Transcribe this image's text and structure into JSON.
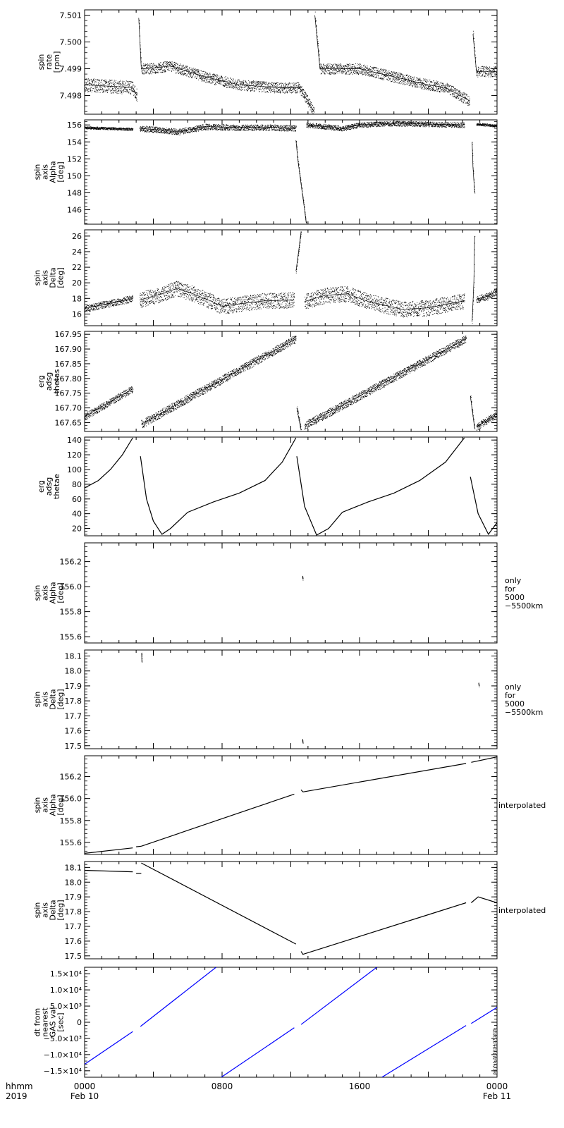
{
  "chart_data": [
    {
      "type": "scatter",
      "ylabel": [
        "spin",
        "rate",
        "[rpm]"
      ],
      "ylim": [
        7.4973,
        7.5012
      ],
      "yticks": [
        "7.498",
        "7.499",
        "7.500",
        "7.501"
      ],
      "yticks_v": [
        7.498,
        7.499,
        7.5,
        7.501
      ],
      "color": "#000000",
      "segments": [
        {
          "x": [
            0.0,
            2.8,
            3.05
          ],
          "y": [
            7.4984,
            7.4983,
            7.498
          ],
          "spread": 0.00025
        },
        {
          "x": [
            3.15,
            3.3,
            3.6,
            5.0,
            7.0,
            9.0,
            11.2,
            12.5,
            13.35
          ],
          "y": [
            7.5009,
            7.499,
            7.499,
            7.4991,
            7.4987,
            7.4984,
            7.4983,
            7.4983,
            7.4974
          ],
          "spread": 0.0002
        },
        {
          "x": [
            13.4,
            13.7,
            14.2,
            16.0,
            18.0,
            20.0,
            21.0,
            22.4
          ],
          "y": [
            7.501,
            7.499,
            7.499,
            7.499,
            7.4987,
            7.4984,
            7.4983,
            7.4978
          ],
          "spread": 0.0002
        },
        {
          "x": [
            22.6,
            22.8,
            23.3,
            24.0
          ],
          "y": [
            7.5003,
            7.4989,
            7.4989,
            7.4989
          ],
          "spread": 0.0002
        }
      ]
    },
    {
      "type": "scatter",
      "ylabel": [
        "spin",
        "axis",
        "Alpha",
        "[deg]"
      ],
      "ylim": [
        144.3,
        156.6
      ],
      "yticks": [
        "146",
        "148",
        "150",
        "152",
        "154",
        "156"
      ],
      "yticks_v": [
        146,
        148,
        150,
        152,
        154,
        156
      ],
      "color": "#000000",
      "segments": [
        {
          "x": [
            0.0,
            1.5,
            2.8
          ],
          "y": [
            155.7,
            155.6,
            155.5
          ],
          "spread": 0.15
        },
        {
          "x": [
            3.2,
            5.0,
            5.5,
            7.0,
            9.0,
            11.0,
            12.3
          ],
          "y": [
            155.6,
            155.3,
            155.2,
            155.8,
            155.7,
            155.7,
            155.6
          ],
          "spread": 0.35
        },
        {
          "x": [
            12.3,
            12.4,
            12.6,
            12.8,
            12.9
          ],
          "y": [
            154.2,
            152.0,
            149.0,
            146.0,
            144.4
          ],
          "spread": 0.2
        },
        {
          "x": [
            12.9,
            13.5,
            15.0,
            16.0,
            18.0,
            20.0,
            22.1
          ],
          "y": [
            156.0,
            155.9,
            155.6,
            156.0,
            156.2,
            156.1,
            156.0
          ],
          "spread": 0.3
        },
        {
          "x": [
            22.55,
            22.6,
            22.7
          ],
          "y": [
            154.0,
            151.0,
            148.0
          ],
          "spread": 0.2
        },
        {
          "x": [
            22.8,
            23.5,
            24.0
          ],
          "y": [
            156.1,
            156.0,
            155.9
          ],
          "spread": 0.15
        }
      ]
    },
    {
      "type": "scatter",
      "ylabel": [
        "spin",
        "axis",
        "Delta",
        "[deg]"
      ],
      "ylim": [
        14.5,
        26.8
      ],
      "yticks": [
        "16",
        "18",
        "20",
        "22",
        "24",
        "26"
      ],
      "yticks_v": [
        16,
        18,
        20,
        22,
        24,
        26
      ],
      "color": "#000000",
      "segments": [
        {
          "x": [
            0.0,
            1.5,
            2.8
          ],
          "y": [
            16.7,
            17.4,
            18.0
          ],
          "spread": 0.45
        },
        {
          "x": [
            3.2,
            4.5,
            5.4,
            6.3,
            7.3,
            8.0,
            9.0,
            10.5,
            12.2
          ],
          "y": [
            17.8,
            18.6,
            19.3,
            18.6,
            17.7,
            17.0,
            17.3,
            17.7,
            17.8
          ],
          "spread": 1.0
        },
        {
          "x": [
            12.3,
            12.45,
            12.6
          ],
          "y": [
            21.5,
            24.0,
            26.6
          ],
          "spread": 0.2
        },
        {
          "x": [
            12.8,
            14.0,
            15.3,
            16.5,
            17.5,
            18.5,
            20.0,
            22.1
          ],
          "y": [
            17.6,
            18.4,
            18.6,
            17.6,
            17.1,
            16.6,
            16.8,
            17.7
          ],
          "spread": 1.0
        },
        {
          "x": [
            22.55,
            22.65,
            22.7
          ],
          "y": [
            15.0,
            20.0,
            26.0
          ],
          "spread": 0.2
        },
        {
          "x": [
            22.8,
            23.5,
            24.0
          ],
          "y": [
            17.9,
            18.3,
            19.0
          ],
          "spread": 0.45
        }
      ]
    },
    {
      "type": "scatter",
      "ylabel": [
        "erg",
        "adsg",
        "thetas"
      ],
      "ylim": [
        167.62,
        167.96
      ],
      "yticks": [
        "167.65",
        "167.70",
        "167.75",
        "167.80",
        "167.85",
        "167.90",
        "167.95"
      ],
      "yticks_v": [
        167.65,
        167.7,
        167.75,
        167.8,
        167.85,
        167.9,
        167.95
      ],
      "color": "#000000",
      "segments": [
        {
          "x": [
            0.0,
            2.8
          ],
          "y": [
            167.67,
            167.765
          ],
          "spread": 0.012
        },
        {
          "x": [
            3.3,
            12.3
          ],
          "y": [
            167.645,
            167.935
          ],
          "spread": 0.014
        },
        {
          "x": [
            12.35,
            12.6
          ],
          "y": [
            167.7,
            167.625
          ],
          "spread": 0.01
        },
        {
          "x": [
            12.8,
            22.2
          ],
          "y": [
            167.64,
            167.935
          ],
          "spread": 0.014
        },
        {
          "x": [
            22.45,
            22.7
          ],
          "y": [
            167.74,
            167.63
          ],
          "spread": 0.01
        },
        {
          "x": [
            22.8,
            24.0
          ],
          "y": [
            167.635,
            167.68
          ],
          "spread": 0.012
        }
      ]
    },
    {
      "type": "line",
      "ylabel": [
        "erg",
        "adsg",
        "thetae"
      ],
      "ylim": [
        10,
        144
      ],
      "yticks": [
        "20",
        "40",
        "60",
        "80",
        "100",
        "120",
        "140"
      ],
      "yticks_v": [
        20,
        40,
        60,
        80,
        100,
        120,
        140
      ],
      "color": "#000000",
      "segments": [
        {
          "x": [
            0.0,
            0.8,
            1.5,
            2.2,
            2.8
          ],
          "y": [
            75,
            85,
            100,
            120,
            143
          ],
          "spread": 0
        },
        {
          "x": [
            3.25,
            3.6,
            4.0,
            4.5,
            5.0,
            6.0,
            7.5,
            9.0,
            10.5,
            11.5,
            12.3
          ],
          "y": [
            118,
            60,
            30,
            12,
            20,
            42,
            56,
            68,
            85,
            110,
            143
          ],
          "spread": 0
        },
        {
          "x": [
            12.35,
            12.8,
            13.5,
            14.2,
            15.0,
            16.5,
            18.0,
            19.5,
            21.0,
            22.1
          ],
          "y": [
            118,
            50,
            11,
            20,
            42,
            56,
            68,
            85,
            110,
            143
          ],
          "spread": 0
        },
        {
          "x": [
            22.45,
            22.9,
            23.5,
            24.0
          ],
          "y": [
            90,
            40,
            12,
            28
          ],
          "spread": 0
        }
      ]
    },
    {
      "type": "scatter",
      "ylabel": [
        "spin",
        "axis",
        "Alpha",
        "[deg]"
      ],
      "ylim": [
        155.55,
        156.35
      ],
      "yticks": [
        "155.6",
        "155.8",
        "156.0",
        "156.2"
      ],
      "yticks_v": [
        155.6,
        155.8,
        156.0,
        156.2
      ],
      "side_label": [
        "only",
        "for",
        "5000",
        "−5500km"
      ],
      "color": "#000000",
      "segments": [
        {
          "x": [
            12.68,
            12.7
          ],
          "y": [
            156.08,
            156.06
          ],
          "spread": 0.01
        }
      ]
    },
    {
      "type": "scatter",
      "ylabel": [
        "spin",
        "axis",
        "Delta",
        "[deg]"
      ],
      "ylim": [
        17.48,
        18.14
      ],
      "yticks": [
        "17.5",
        "17.6",
        "17.7",
        "17.8",
        "17.9",
        "18.0",
        "18.1"
      ],
      "yticks_v": [
        17.5,
        17.6,
        17.7,
        17.8,
        17.9,
        18.0,
        18.1
      ],
      "side_label": [
        "only",
        "for",
        "5000",
        "−5500km"
      ],
      "color": "#000000",
      "segments": [
        {
          "x": [
            3.32,
            3.33
          ],
          "y": [
            18.12,
            18.06
          ],
          "spread": 0.005
        },
        {
          "x": [
            12.68,
            12.7
          ],
          "y": [
            17.54,
            17.52
          ],
          "spread": 0.005
        },
        {
          "x": [
            22.93,
            22.95
          ],
          "y": [
            17.92,
            17.9
          ],
          "spread": 0.005
        }
      ]
    },
    {
      "type": "line",
      "ylabel": [
        "spin",
        "axis",
        "Alpha",
        "[deg]"
      ],
      "ylim": [
        155.49,
        156.39
      ],
      "yticks": [
        "155.6",
        "155.8",
        "156.0",
        "156.2"
      ],
      "yticks_v": [
        155.6,
        155.8,
        156.0,
        156.2
      ],
      "side_label": [
        "interpolated"
      ],
      "color": "#000000",
      "segments": [
        {
          "x": [
            0.0,
            2.8
          ],
          "y": [
            155.5,
            155.55
          ],
          "spread": 0
        },
        {
          "x": [
            3.0,
            3.3
          ],
          "y": [
            155.56,
            155.565
          ],
          "spread": 0
        },
        {
          "x": [
            3.3,
            12.2
          ],
          "y": [
            155.565,
            156.04
          ],
          "spread": 0
        },
        {
          "x": [
            12.6,
            12.7
          ],
          "y": [
            156.08,
            156.06
          ],
          "spread": 0
        },
        {
          "x": [
            12.7,
            22.2
          ],
          "y": [
            156.06,
            156.32
          ],
          "spread": 0
        },
        {
          "x": [
            22.5,
            24.0
          ],
          "y": [
            156.33,
            156.38
          ],
          "spread": 0
        }
      ]
    },
    {
      "type": "line",
      "ylabel": [
        "spin",
        "axis",
        "Delta",
        "[deg]"
      ],
      "ylim": [
        17.48,
        18.14
      ],
      "yticks": [
        "17.5",
        "17.6",
        "17.7",
        "17.8",
        "17.9",
        "18.0",
        "18.1"
      ],
      "yticks_v": [
        17.5,
        17.6,
        17.7,
        17.8,
        17.9,
        18.0,
        18.1
      ],
      "side_label": [
        "interpolated"
      ],
      "color": "#000000",
      "segments": [
        {
          "x": [
            0.0,
            2.8
          ],
          "y": [
            18.08,
            18.07
          ],
          "spread": 0
        },
        {
          "x": [
            3.0,
            3.3
          ],
          "y": [
            18.06,
            18.06
          ],
          "spread": 0
        },
        {
          "x": [
            3.3,
            12.3
          ],
          "y": [
            18.13,
            17.58
          ],
          "spread": 0
        },
        {
          "x": [
            12.6,
            12.7,
            22.2
          ],
          "y": [
            17.53,
            17.51,
            17.86
          ],
          "spread": 0
        },
        {
          "x": [
            22.5,
            22.9,
            24.0
          ],
          "y": [
            17.86,
            17.9,
            17.86
          ],
          "spread": 0
        }
      ]
    },
    {
      "type": "line",
      "ylabel": [
        "dt from",
        "nearest",
        "GAS val",
        "[sec]"
      ],
      "ylim": [
        -17000,
        17000
      ],
      "yticks": [
        "−1.5×10⁴",
        "−1.0×10⁴",
        "−5.0×10³",
        "0",
        "5.0×10³",
        "1.0×10⁴",
        "1.5×10⁴"
      ],
      "yticks_v": [
        -15000,
        -10000,
        -5000,
        0,
        5000,
        10000,
        15000
      ],
      "stamp": "Sat Feb 23 10:54:07 2019",
      "color": "#0000ff",
      "segments": [
        {
          "x": [
            0.0,
            2.8
          ],
          "y": [
            -13000,
            -2900
          ],
          "spread": 0
        },
        {
          "x": [
            3.25,
            7.65
          ],
          "y": [
            -1300,
            17000
          ],
          "spread": 0
        },
        {
          "x": [
            7.95,
            12.2
          ],
          "y": [
            -17000,
            -1700
          ],
          "spread": 0
        },
        {
          "x": [
            12.6,
            17.0
          ],
          "y": [
            -700,
            17000
          ],
          "spread": 0
        },
        {
          "x": [
            17.3,
            22.2
          ],
          "y": [
            -17000,
            -1000
          ],
          "spread": 0
        },
        {
          "x": [
            22.5,
            24.0
          ],
          "y": [
            -400,
            4600
          ],
          "spread": 0
        }
      ]
    }
  ],
  "xaxis": {
    "xlim": [
      0,
      24
    ],
    "corner_labels": [
      "hhmm",
      "2019"
    ],
    "ticks": [
      {
        "value": 0,
        "label": "0000",
        "sub": "Feb 10"
      },
      {
        "value": 8,
        "label": "0800",
        "sub": ""
      },
      {
        "value": 16,
        "label": "1600",
        "sub": ""
      },
      {
        "value": 24,
        "label": "0000",
        "sub": "Feb 11"
      }
    ]
  }
}
